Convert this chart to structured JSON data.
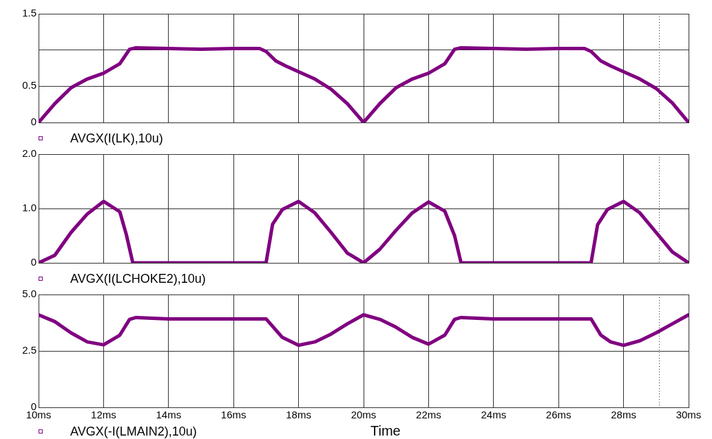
{
  "chart_data": [
    {
      "type": "line",
      "x": [
        10,
        10.5,
        11,
        11.5,
        12,
        12.5,
        12.8,
        13,
        14,
        15,
        16,
        16.8,
        17,
        17.3,
        17.6,
        18,
        18.5,
        19,
        19.5,
        20,
        20.5,
        21,
        21.5,
        22,
        22.5,
        22.8,
        23,
        24,
        25,
        26,
        26.8,
        27,
        27.3,
        27.6,
        28,
        28.5,
        29,
        29.5,
        30
      ],
      "series": [
        {
          "name": "AVGX(I(LK),10u)",
          "color": "#800080",
          "values": [
            0,
            0.26,
            0.48,
            0.6,
            0.68,
            0.81,
            1.01,
            1.03,
            1.02,
            1.01,
            1.02,
            1.02,
            0.98,
            0.85,
            0.78,
            0.7,
            0.6,
            0.46,
            0.26,
            0,
            0.26,
            0.48,
            0.6,
            0.68,
            0.81,
            1.01,
            1.03,
            1.02,
            1.01,
            1.02,
            1.02,
            0.98,
            0.85,
            0.78,
            0.7,
            0.6,
            0.47,
            0.27,
            0
          ]
        }
      ],
      "xlim": [
        10,
        30
      ],
      "xticks": [
        {
          "value": 10,
          "label": null
        },
        {
          "value": 12,
          "label": null
        },
        {
          "value": 14,
          "label": null
        },
        {
          "value": 16,
          "label": null
        },
        {
          "value": 18,
          "label": null
        },
        {
          "value": 20,
          "label": null
        },
        {
          "value": 22,
          "label": null
        },
        {
          "value": 24,
          "label": null
        },
        {
          "value": 26,
          "label": null
        },
        {
          "value": 28,
          "label": null
        },
        {
          "value": 30,
          "label": null
        }
      ],
      "ylim": [
        0,
        1.5
      ],
      "yticks": [
        0,
        0.5,
        {
          "value": 1,
          "label": null
        },
        1.5
      ],
      "ref_lines": [
        {
          "axis": "x",
          "value": 29.1,
          "color": "#333333",
          "line_style": "dotted"
        }
      ],
      "grid": true,
      "legend": "bottom left",
      "marker": "none",
      "line_style": "solid",
      "tick_labels": "y"
    },
    {
      "type": "line",
      "x": [
        10,
        10.5,
        11,
        11.5,
        12,
        12.5,
        12.7,
        12.9,
        17,
        17.2,
        17.5,
        18,
        18.5,
        19,
        19.5,
        20,
        20.5,
        21,
        21.5,
        22,
        22.5,
        22.8,
        23,
        27,
        27.2,
        27.5,
        28,
        28.5,
        29,
        29.5,
        30
      ],
      "series": [
        {
          "name": "AVGX(I(LCHOKE2),10u)",
          "color": "#800080",
          "values": [
            0,
            0.14,
            0.56,
            0.9,
            1.13,
            0.94,
            0.52,
            0,
            0,
            0.71,
            0.98,
            1.13,
            0.92,
            0.56,
            0.18,
            0,
            0.25,
            0.6,
            0.92,
            1.12,
            0.95,
            0.5,
            0,
            0,
            0.7,
            0.98,
            1.13,
            0.92,
            0.56,
            0.2,
            0
          ]
        }
      ],
      "xlim": [
        10,
        30
      ],
      "xticks": [
        {
          "value": 10,
          "label": null
        },
        {
          "value": 12,
          "label": null
        },
        {
          "value": 14,
          "label": null
        },
        {
          "value": 16,
          "label": null
        },
        {
          "value": 18,
          "label": null
        },
        {
          "value": 20,
          "label": null
        },
        {
          "value": 22,
          "label": null
        },
        {
          "value": 24,
          "label": null
        },
        {
          "value": 26,
          "label": null
        },
        {
          "value": 28,
          "label": null
        },
        {
          "value": 30,
          "label": null
        }
      ],
      "ylim": [
        0,
        2
      ],
      "yticks": [
        0,
        {
          "value": 1,
          "label": "1.0"
        },
        {
          "value": 2,
          "label": "2.0"
        }
      ],
      "ref_lines": [
        {
          "axis": "x",
          "value": 29.1,
          "color": "#333333",
          "line_style": "dotted"
        }
      ],
      "grid": true,
      "legend": "bottom left",
      "marker": "none",
      "line_style": "solid",
      "tick_labels": "y"
    },
    {
      "type": "line",
      "xlabel": "Time",
      "x": [
        10,
        10.5,
        11,
        11.5,
        12,
        12.5,
        12.8,
        13,
        14,
        15,
        16,
        17,
        17.5,
        18,
        18.5,
        19,
        19.5,
        20,
        20.5,
        21,
        21.5,
        22,
        22.5,
        22.8,
        23,
        24,
        25,
        26,
        27,
        27.3,
        27.6,
        28,
        28.5,
        29,
        29.5,
        30
      ],
      "series": [
        {
          "name": "AVGX(-I(LMAIN2),10u)",
          "color": "#800080",
          "values": [
            4.1,
            3.8,
            3.3,
            2.9,
            2.77,
            3.2,
            3.9,
            3.98,
            3.92,
            3.92,
            3.92,
            3.92,
            3.1,
            2.75,
            2.9,
            3.25,
            3.7,
            4.1,
            3.9,
            3.55,
            3.1,
            2.8,
            3.2,
            3.9,
            3.98,
            3.92,
            3.92,
            3.92,
            3.92,
            3.2,
            2.9,
            2.75,
            2.95,
            3.3,
            3.7,
            4.1
          ]
        }
      ],
      "xlim": [
        10,
        30
      ],
      "xticks": [
        {
          "value": 10,
          "label": "10ms"
        },
        {
          "value": 12,
          "label": "12ms"
        },
        {
          "value": 14,
          "label": "14ms"
        },
        {
          "value": 16,
          "label": "16ms"
        },
        {
          "value": 18,
          "label": "18ms"
        },
        {
          "value": 20,
          "label": "20ms"
        },
        {
          "value": 22,
          "label": "22ms"
        },
        {
          "value": 24,
          "label": "24ms"
        },
        {
          "value": 26,
          "label": "26ms"
        },
        {
          "value": 28,
          "label": "28ms"
        },
        {
          "value": 30,
          "label": "30ms"
        }
      ],
      "ylim": [
        0,
        5
      ],
      "yticks": [
        0,
        2.5,
        {
          "value": 5,
          "label": "5.0"
        }
      ],
      "ref_lines": [
        {
          "axis": "x",
          "value": 29.1,
          "color": "#333333",
          "line_style": "dotted"
        }
      ],
      "grid": true,
      "legend": "bottom left",
      "marker": "none",
      "line_style": "solid"
    }
  ]
}
